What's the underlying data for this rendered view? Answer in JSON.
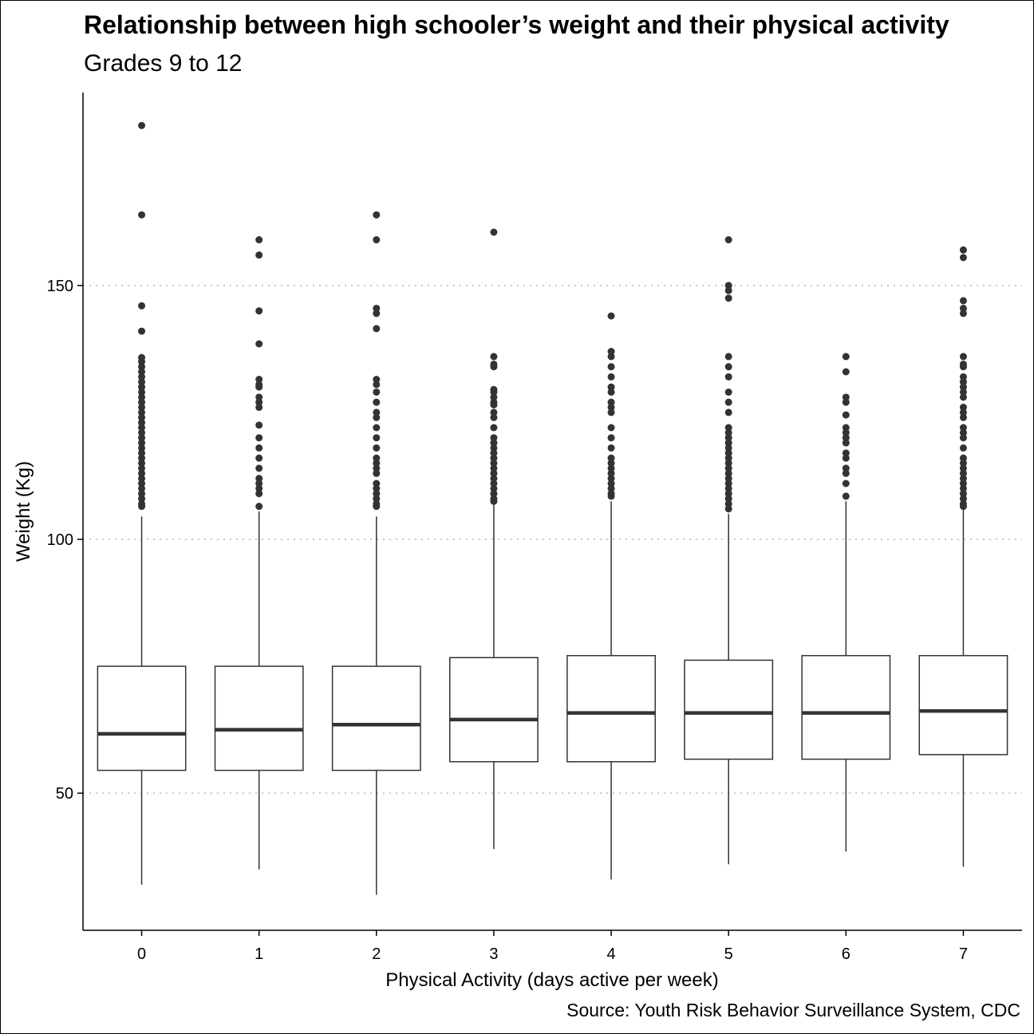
{
  "title": "Relationship between high schooler’s weight and their physical activity",
  "subtitle": "Grades 9 to 12",
  "caption": "Source: Youth Risk Behavior Surveillance System, CDC",
  "chart_data": {
    "type": "boxplot",
    "xlabel": "Physical Activity (days active per week)",
    "ylabel": "Weight (Kg)",
    "ylim": [
      23,
      188
    ],
    "yticks": [
      50,
      100,
      150
    ],
    "grid": "horizontal dotted at y ticks",
    "legend": "none",
    "categories": [
      "0",
      "1",
      "2",
      "3",
      "4",
      "5",
      "6",
      "7"
    ],
    "boxes": [
      {
        "q1": 54.5,
        "median": 61.7,
        "q3": 75.0,
        "whisker_low": 32.0,
        "whisker_high": 104.5,
        "outliers": [
          181.5,
          163.9,
          146.0,
          141.0,
          135.8,
          135.0,
          134.0,
          133.0,
          132.0,
          131.0,
          130.0,
          129.0,
          128.0,
          127.0,
          126.0,
          125.0,
          124.0,
          123.0,
          122.0,
          121.0,
          120.0,
          119.0,
          118.0,
          117.0,
          116.0,
          115.0,
          114.0,
          113.0,
          112.0,
          111.0,
          110.0,
          109.0,
          108.0,
          107.0,
          106.5
        ]
      },
      {
        "q1": 54.5,
        "median": 62.5,
        "q3": 75.0,
        "whisker_low": 35.0,
        "whisker_high": 105.5,
        "outliers": [
          159.0,
          156.0,
          145.0,
          138.5,
          131.5,
          130.5,
          130.0,
          128.0,
          127.0,
          126.0,
          122.5,
          120.0,
          118.0,
          116.0,
          114.0,
          112.0,
          111.0,
          110.0,
          109.0,
          106.5
        ]
      },
      {
        "q1": 54.5,
        "median": 63.5,
        "q3": 75.0,
        "whisker_low": 30.0,
        "whisker_high": 104.5,
        "outliers": [
          163.9,
          159.0,
          145.5,
          144.5,
          141.5,
          131.5,
          130.5,
          129.0,
          127.0,
          125.0,
          124.0,
          122.0,
          120.0,
          118.0,
          116.0,
          115.0,
          114.0,
          113.0,
          111.0,
          110.0,
          109.0,
          108.0,
          107.0,
          106.5
        ]
      },
      {
        "q1": 56.2,
        "median": 64.5,
        "q3": 76.7,
        "whisker_low": 39.0,
        "whisker_high": 107.0,
        "outliers": [
          160.5,
          136.0,
          134.5,
          134.0,
          129.5,
          129.0,
          128.0,
          127.0,
          126.5,
          125.0,
          124.0,
          122.0,
          120.0,
          119.0,
          118.0,
          117.0,
          116.0,
          115.0,
          114.0,
          113.0,
          112.0,
          111.0,
          110.0,
          109.0,
          108.0,
          107.5
        ]
      },
      {
        "q1": 56.2,
        "median": 65.8,
        "q3": 77.1,
        "whisker_low": 33.0,
        "whisker_high": 107.5,
        "outliers": [
          144.0,
          137.0,
          136.0,
          134.0,
          132.0,
          130.0,
          129.0,
          127.0,
          126.0,
          125.0,
          122.0,
          120.0,
          118.0,
          116.0,
          115.0,
          114.0,
          113.0,
          112.0,
          111.0,
          110.0,
          109.0,
          108.5
        ]
      },
      {
        "q1": 56.7,
        "median": 65.8,
        "q3": 76.2,
        "whisker_low": 36.0,
        "whisker_high": 105.0,
        "outliers": [
          159.0,
          150.0,
          149.0,
          147.5,
          136.0,
          134.0,
          132.0,
          129.0,
          127.0,
          125.0,
          122.0,
          121.0,
          120.0,
          119.0,
          118.0,
          117.0,
          116.0,
          115.0,
          114.0,
          113.0,
          112.0,
          111.0,
          110.0,
          109.0,
          108.0,
          107.0,
          106.0
        ]
      },
      {
        "q1": 56.7,
        "median": 65.8,
        "q3": 77.1,
        "whisker_low": 38.5,
        "whisker_high": 107.5,
        "outliers": [
          136.0,
          133.0,
          128.0,
          127.0,
          124.5,
          122.0,
          121.0,
          120.0,
          119.0,
          117.0,
          116.0,
          114.0,
          113.0,
          111.0,
          108.5
        ]
      },
      {
        "q1": 57.6,
        "median": 66.2,
        "q3": 77.1,
        "whisker_low": 35.5,
        "whisker_high": 106.0,
        "outliers": [
          157.0,
          155.5,
          147.0,
          145.5,
          144.5,
          136.0,
          134.5,
          134.0,
          132.0,
          131.0,
          130.0,
          129.0,
          128.0,
          126.0,
          125.0,
          124.0,
          122.0,
          121.0,
          120.0,
          118.0,
          116.0,
          115.0,
          114.0,
          113.0,
          112.0,
          111.0,
          110.0,
          109.0,
          108.0,
          107.0,
          106.5
        ]
      }
    ]
  }
}
